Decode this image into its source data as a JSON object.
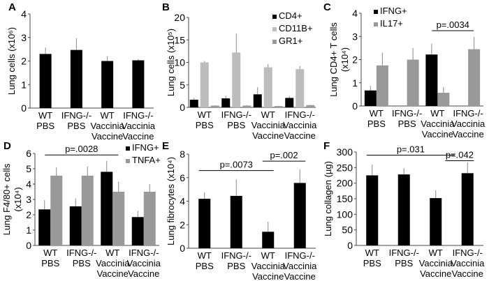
{
  "chart_data": [
    {
      "panel": "A",
      "type": "bar",
      "ylabel": [
        "Lung cells (x10⁶)"
      ],
      "ylim": [
        0,
        4
      ],
      "yticks": [
        0,
        1,
        2,
        3,
        4
      ],
      "categories": [
        [
          "WT",
          "PBS"
        ],
        [
          "IFNG-/-",
          "PBS"
        ],
        [
          "WT",
          "Vaccinia",
          "Vaccine"
        ],
        [
          "IFNG-/-",
          "Vaccinia",
          "Vaccine"
        ]
      ],
      "series": [
        {
          "color": "#000000",
          "values": [
            2.3,
            2.47,
            2.0,
            2.03
          ],
          "errors": [
            0.27,
            0.5,
            0.2,
            0.05
          ]
        }
      ],
      "significance": []
    },
    {
      "panel": "B",
      "type": "bar",
      "ylabel": [
        "Lung cells (x10⁵)"
      ],
      "ylim": [
        0,
        20
      ],
      "yticks": [
        0,
        5,
        10,
        15,
        20
      ],
      "categories": [
        [
          "WT",
          "PBS"
        ],
        [
          "IFNG-/-",
          "PBS"
        ],
        [
          "WT",
          "Vaccinia",
          "Vaccine"
        ],
        [
          "IFNG-/-",
          "Vaccinia",
          "Vaccine"
        ]
      ],
      "series": [
        {
          "name": "CD4+",
          "color": "#000000",
          "values": [
            1.7,
            2.0,
            2.9,
            2.1
          ],
          "errors": [
            0.4,
            0.6,
            1.6,
            0.4
          ]
        },
        {
          "name": "CD11B+",
          "color": "#bcbcbc",
          "values": [
            10.0,
            12.2,
            8.9,
            8.5
          ],
          "errors": [
            0.3,
            4.2,
            0.7,
            0.7
          ]
        },
        {
          "name": "GR1+",
          "color": "#999999",
          "values": [
            0.4,
            0.4,
            0.3,
            0.5
          ],
          "errors": [
            0.1,
            0.1,
            0.05,
            0.1
          ]
        }
      ],
      "legend": "top-right",
      "significance": []
    },
    {
      "panel": "C",
      "type": "bar",
      "ylabel": [
        "Lung CD4+ T cells",
        "(x10⁴)"
      ],
      "ylim": [
        0,
        4
      ],
      "yticks": [
        0,
        1,
        2,
        3,
        4
      ],
      "categories": [
        [
          "WT",
          "PBS"
        ],
        [
          "IFNG-/-",
          "PBS"
        ],
        [
          "WT",
          "Vaccinia",
          "Vaccine"
        ],
        [
          "IFNG-/-",
          "Vaccinia",
          "Vaccine"
        ]
      ],
      "series": [
        {
          "name": "IFNG+",
          "color": "#000000",
          "values": [
            0.67,
            null,
            2.22,
            null
          ],
          "errors": [
            0.2,
            null,
            0.47,
            null
          ]
        },
        {
          "name": "IL17+",
          "color": "#999999",
          "values": [
            1.75,
            2.0,
            0.57,
            2.45
          ],
          "errors": [
            0.55,
            0.5,
            0.25,
            0.53
          ]
        }
      ],
      "legend": "top-left",
      "significance": [
        {
          "from": 2,
          "to": 3,
          "label": "p=.0034",
          "y": 3.25
        }
      ]
    },
    {
      "panel": "D",
      "type": "bar",
      "ylabel": [
        "Lung F4/80+ cells",
        "(x10⁴)"
      ],
      "ylim": [
        0,
        6
      ],
      "yticks": [
        0,
        1,
        2,
        3,
        4,
        5,
        6
      ],
      "categories": [
        [
          "WT",
          "PBS"
        ],
        [
          "IFNG-/-",
          "PBS"
        ],
        [
          "WT",
          "Vaccinia",
          "Vaccine"
        ],
        [
          "IFNG-/-",
          "Vaccinia",
          "Vaccine"
        ]
      ],
      "series": [
        {
          "name": "IFNG+",
          "color": "#000000",
          "values": [
            2.35,
            2.55,
            4.8,
            1.85
          ],
          "errors": [
            0.6,
            0.5,
            0.7,
            0.4
          ]
        },
        {
          "name": "TNFA+",
          "color": "#999999",
          "values": [
            4.55,
            4.55,
            3.5,
            3.5
          ],
          "errors": [
            0.55,
            0.6,
            0.65,
            0.5
          ]
        }
      ],
      "legend": "top-right",
      "significance": [
        {
          "from": 0,
          "to": 2,
          "label": "p=.0028",
          "y": 5.9
        }
      ]
    },
    {
      "panel": "E",
      "type": "bar",
      "ylabel": [
        "Lung fibrocytes (x10⁴)"
      ],
      "ylim": [
        0,
        8
      ],
      "yticks": [
        0,
        2,
        4,
        6,
        8
      ],
      "categories": [
        [
          "WT",
          "PBS"
        ],
        [
          "IFNG-/-",
          "PBS"
        ],
        [
          "WT",
          "Vaccinia",
          "Vaccine"
        ],
        [
          "IFNG-/-",
          "Vaccinia",
          "Vaccine"
        ]
      ],
      "series": [
        {
          "color": "#000000",
          "values": [
            4.2,
            4.45,
            1.4,
            5.55
          ],
          "errors": [
            0.55,
            1.4,
            0.85,
            1.15
          ]
        }
      ],
      "significance": [
        {
          "from": 0,
          "to": 2,
          "label": "p=.0073",
          "y": 6.6
        },
        {
          "from": 2,
          "to": 3,
          "label": "p=.002",
          "y": 7.4
        }
      ]
    },
    {
      "panel": "F",
      "type": "bar",
      "ylabel": [
        "Lung collagen (µg)"
      ],
      "ylim": [
        0,
        300
      ],
      "yticks": [
        0,
        50,
        100,
        150,
        200,
        250,
        300
      ],
      "categories": [
        [
          "WT",
          "PBS"
        ],
        [
          "IFNG-/-",
          "PBS"
        ],
        [
          "WT",
          "Vaccinia",
          "Vaccine"
        ],
        [
          "IFNG-/-",
          "Vaccinia",
          "Vaccine"
        ]
      ],
      "series": [
        {
          "color": "#000000",
          "values": [
            225,
            228,
            152,
            232
          ],
          "errors": [
            35,
            20,
            25,
            35
          ]
        }
      ],
      "significance": [
        {
          "from": 0,
          "to": 2.6,
          "label": "p=.031",
          "y": 290
        },
        {
          "from": 2.3,
          "to": 3.2,
          "label": "p=.042",
          "y": 272
        }
      ]
    }
  ]
}
